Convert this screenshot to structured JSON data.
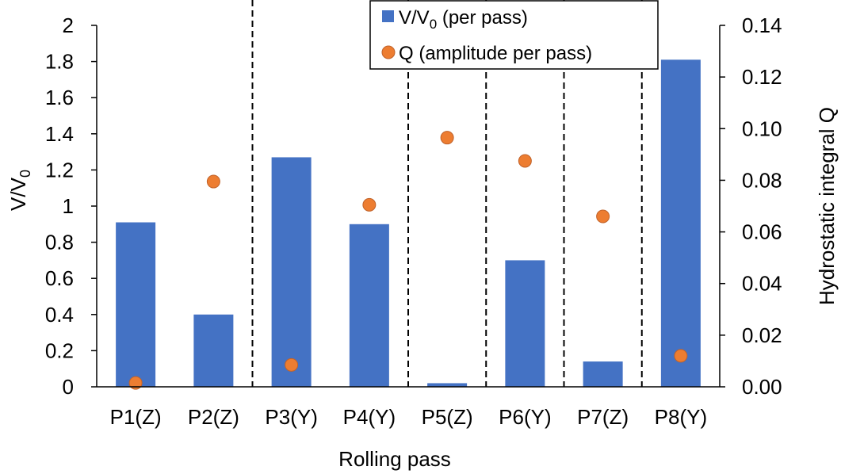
{
  "chart_data": {
    "type": "bar",
    "categories": [
      "P1(Z)",
      "P2(Z)",
      "P3(Y)",
      "P4(Y)",
      "P5(Z)",
      "P6(Y)",
      "P7(Z)",
      "P8(Y)"
    ],
    "xlabel": "Rolling pass",
    "ylabel_left": "V/V0",
    "ylabel_right": "Hydrostatic integral Q",
    "ylim_left": [
      0,
      2
    ],
    "yticks_left": [
      "0",
      "0.2",
      "0.4",
      "0.6",
      "0.8",
      "1",
      "1.2",
      "1.4",
      "1.6",
      "1.8",
      "2"
    ],
    "ylim_right": [
      0,
      0.14
    ],
    "yticks_right": [
      "0.00",
      "0.02",
      "0.04",
      "0.06",
      "0.08",
      "0.10",
      "0.12",
      "0.14"
    ],
    "series": [
      {
        "name": "V/V0 (per pass)",
        "type": "bar",
        "axis": "left",
        "color": "#4472C4",
        "values": [
          0.91,
          0.4,
          1.27,
          0.9,
          0.02,
          0.7,
          0.14,
          1.81
        ]
      },
      {
        "name": "Q (amplitude per pass)",
        "type": "scatter",
        "axis": "right",
        "color": "#ED7D31",
        "values": [
          0.0015,
          0.0795,
          0.0085,
          0.0705,
          0.0965,
          0.0875,
          0.066,
          0.012
        ]
      }
    ],
    "divider_after_categories": [
      2,
      4,
      5,
      6,
      7
    ],
    "legend": {
      "placement": "top-right",
      "items": [
        {
          "text": "V/V",
          "sub": "0",
          "tail": " (per pass)",
          "marker": "square"
        },
        {
          "text": "Q (amplitude per pass)",
          "marker": "circle"
        }
      ]
    },
    "ylabel_left_parts": {
      "main": "V/V",
      "sub": "0"
    },
    "grid": false
  }
}
